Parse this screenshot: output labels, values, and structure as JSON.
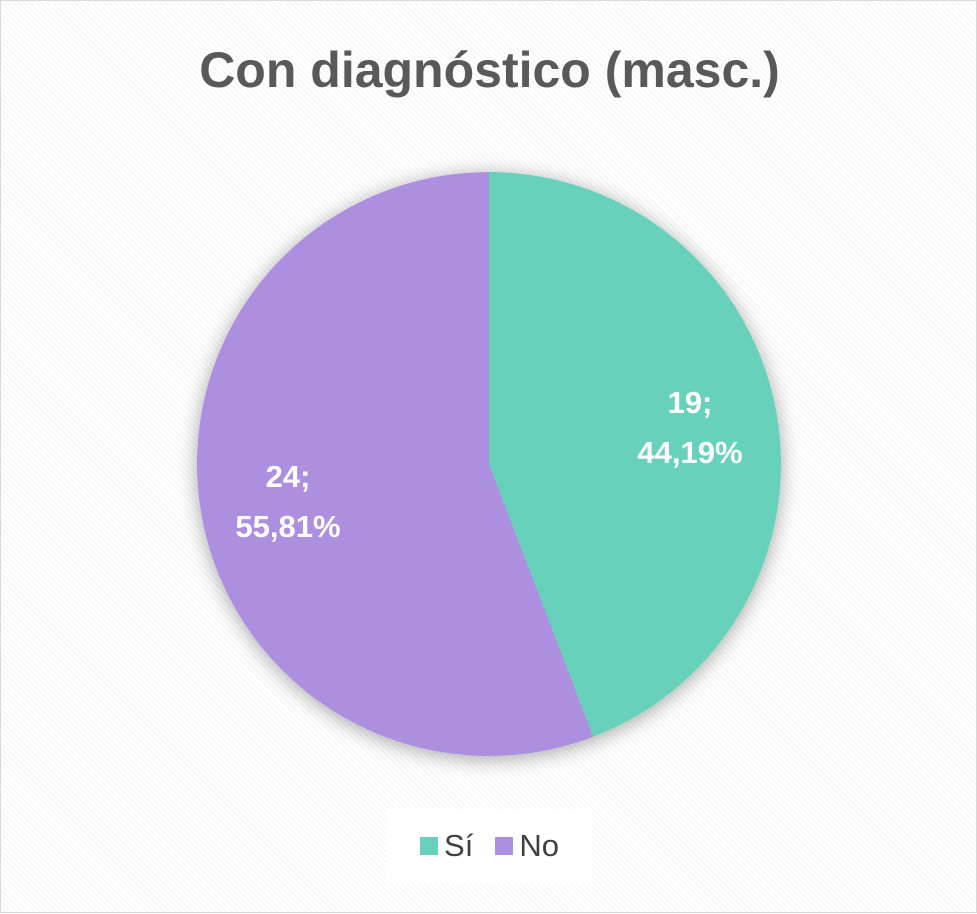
{
  "chart_data": {
    "type": "pie",
    "title": "Con diagnóstico (masc.)",
    "categories": [
      "Sí",
      "No"
    ],
    "values": [
      19,
      24
    ],
    "data_labels": [
      "19;\n44,19%",
      "24;\n55,81%"
    ],
    "colors": [
      "#68d1bc",
      "#ad8fe0"
    ],
    "legend_position": "bottom",
    "start_angle": "12 o'clock, clockwise"
  }
}
